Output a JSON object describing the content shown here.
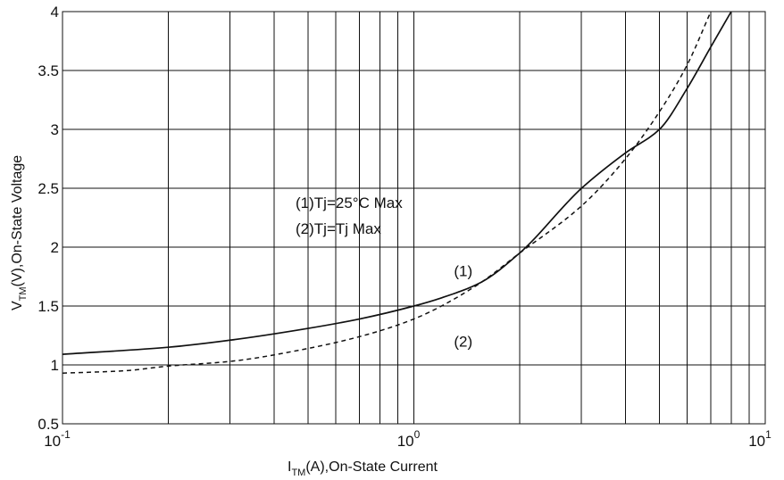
{
  "chart_data": {
    "type": "line",
    "x_scale": "log",
    "xlim": [
      0.1,
      10
    ],
    "ylim": [
      0.5,
      4
    ],
    "grid": true,
    "xlabel": {
      "main": "I",
      "sub": "TM",
      "rest": "(A),On-State Current"
    },
    "ylabel": {
      "main": "V",
      "sub": "TM",
      "rest": "(V),On-State Voltage"
    },
    "x_ticks": [
      {
        "value": 0.1,
        "base": "10",
        "exp": "-1"
      },
      {
        "value": 1,
        "base": "10",
        "exp": "0"
      },
      {
        "value": 10,
        "base": "10",
        "exp": "1"
      }
    ],
    "y_ticks": [
      {
        "value": 0.5,
        "label": "0.5"
      },
      {
        "value": 1,
        "label": "1"
      },
      {
        "value": 1.5,
        "label": "1.5"
      },
      {
        "value": 2,
        "label": "2"
      },
      {
        "value": 2.5,
        "label": "2.5"
      },
      {
        "value": 3,
        "label": "3"
      },
      {
        "value": 3.5,
        "label": "3.5"
      },
      {
        "value": 4,
        "label": "4"
      }
    ],
    "legend": [
      "(1)Tj=25°C Max",
      "(2)Tj=Tj Max"
    ],
    "series": [
      {
        "label": "(1)",
        "style": "solid",
        "x": [
          0.1,
          0.2,
          0.3,
          0.5,
          0.7,
          1.0,
          1.2,
          1.55,
          2.0,
          3.0,
          4.0,
          5.0,
          6.0,
          7.0,
          8.0
        ],
        "y": [
          1.09,
          1.15,
          1.21,
          1.31,
          1.39,
          1.5,
          1.57,
          1.7,
          1.95,
          2.5,
          2.8,
          3.0,
          3.35,
          3.7,
          4.0
        ]
      },
      {
        "label": "(2)",
        "style": "dashed",
        "x": [
          0.1,
          0.15,
          0.2,
          0.3,
          0.5,
          0.7,
          1.0,
          1.5,
          2.0,
          3.0,
          4.0,
          5.0,
          6.0,
          7.0
        ],
        "y": [
          0.93,
          0.95,
          0.99,
          1.03,
          1.14,
          1.24,
          1.39,
          1.67,
          1.95,
          2.35,
          2.75,
          3.15,
          3.55,
          4.0
        ]
      }
    ],
    "series_labels": [
      {
        "text": "(1)",
        "x": 1.3,
        "y": 1.8
      },
      {
        "text": "(2)",
        "x": 1.3,
        "y": 1.2
      }
    ]
  }
}
